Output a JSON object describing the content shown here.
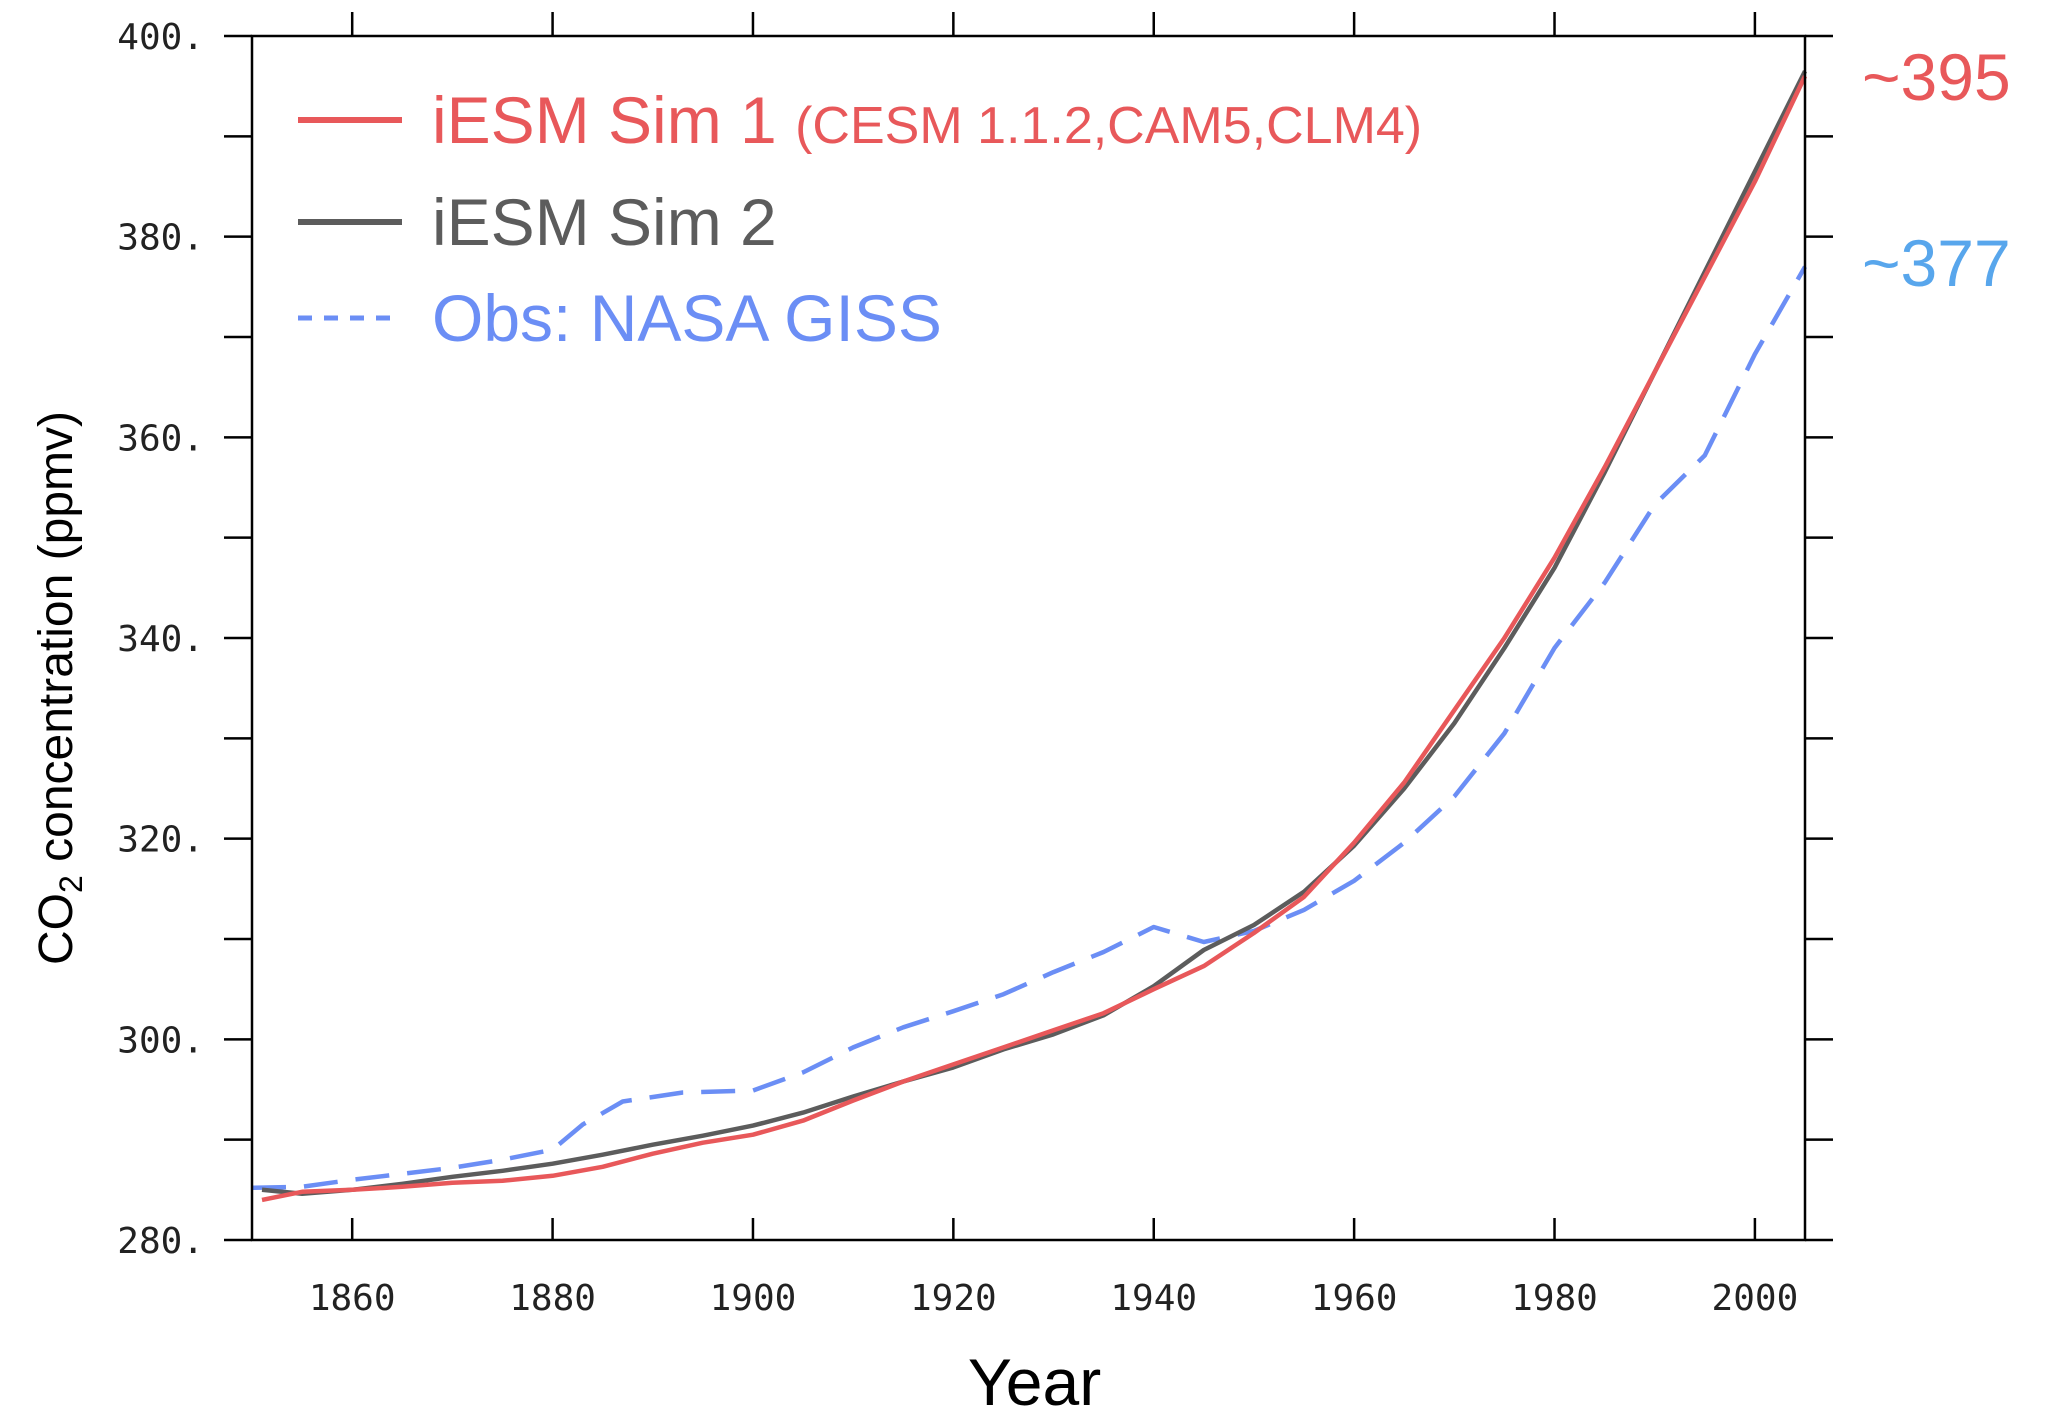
{
  "chart_data": {
    "type": "line",
    "xlabel": "Year",
    "ylabel": "CO",
    "ylabel_sub": "2",
    "ylabel_rest": " concentration (ppmv)",
    "xlim": [
      1850,
      2005
    ],
    "ylim": [
      280,
      400
    ],
    "x_ticks": [
      1860,
      1880,
      1900,
      1920,
      1940,
      1960,
      1980,
      2000
    ],
    "x_tick_labels": [
      "1860",
      "1880",
      "1900",
      "1920",
      "1940",
      "1960",
      "1980",
      "2000"
    ],
    "y_ticks": [
      280,
      300,
      320,
      340,
      360,
      380,
      400
    ],
    "y_tick_labels": [
      "280.",
      "300.",
      "320.",
      "340.",
      "360.",
      "380.",
      "400."
    ],
    "legend_placement": "top-left",
    "series": [
      {
        "name": "iESM Sim 1",
        "name_suffix": "(CESM 1.1.2,CAM5,CLM4)",
        "color": "#e8585a",
        "style": "solid",
        "x": [
          1851,
          1855,
          1860,
          1865,
          1870,
          1875,
          1880,
          1885,
          1890,
          1895,
          1900,
          1905,
          1910,
          1915,
          1920,
          1925,
          1930,
          1935,
          1940,
          1945,
          1950,
          1955,
          1960,
          1965,
          1970,
          1975,
          1980,
          1985,
          1990,
          1995,
          2000,
          2005
        ],
        "y": [
          284,
          284.8,
          285,
          285.3,
          285.7,
          285.9,
          286.4,
          287.3,
          288.6,
          289.7,
          290.5,
          291.9,
          293.9,
          295.8,
          297.5,
          299.2,
          300.9,
          302.6,
          305,
          307.3,
          310.6,
          314.2,
          319.6,
          325.6,
          332.8,
          340,
          348,
          357,
          366.5,
          376,
          385.5,
          396
        ]
      },
      {
        "name": "iESM Sim 2",
        "color": "#5c5c5c",
        "style": "solid",
        "x": [
          1851,
          1855,
          1860,
          1865,
          1870,
          1875,
          1880,
          1885,
          1890,
          1895,
          1900,
          1905,
          1910,
          1915,
          1920,
          1925,
          1930,
          1935,
          1940,
          1945,
          1950,
          1955,
          1960,
          1965,
          1970,
          1975,
          1980,
          1985,
          1990,
          1995,
          2000,
          2005
        ],
        "y": [
          285,
          284.6,
          285,
          285.6,
          286.3,
          286.9,
          287.6,
          288.5,
          289.5,
          290.4,
          291.4,
          292.7,
          294.3,
          295.8,
          297.2,
          299,
          300.5,
          302.4,
          305.3,
          308.9,
          311.4,
          314.7,
          319.3,
          325,
          331.5,
          339,
          347,
          356.5,
          366.5,
          376.5,
          386.5,
          396.5
        ]
      },
      {
        "name": "Obs: NASA GISS",
        "color": "#6b8ef5",
        "style": "dashed",
        "x": [
          1850,
          1855,
          1860,
          1865,
          1870,
          1875,
          1880,
          1883,
          1887,
          1893,
          1900,
          1905,
          1910,
          1915,
          1920,
          1925,
          1930,
          1935,
          1940,
          1945,
          1950,
          1955,
          1960,
          1965,
          1970,
          1975,
          1980,
          1985,
          1990,
          1995,
          2000,
          2005
        ],
        "y": [
          285.2,
          285.3,
          286,
          286.6,
          287.2,
          288,
          289,
          291.5,
          293.8,
          294.7,
          294.9,
          296.7,
          299.2,
          301.2,
          302.8,
          304.5,
          306.7,
          308.7,
          311.2,
          309.7,
          310.8,
          312.9,
          315.8,
          319.6,
          324.2,
          330.5,
          339,
          345.5,
          353.3,
          358.2,
          368.3,
          377
        ]
      }
    ],
    "annotations": [
      {
        "text": "~395",
        "color": "#e8585a",
        "y": 396
      },
      {
        "text": "~377",
        "color": "#58a6ec",
        "y": 377.5
      }
    ]
  }
}
